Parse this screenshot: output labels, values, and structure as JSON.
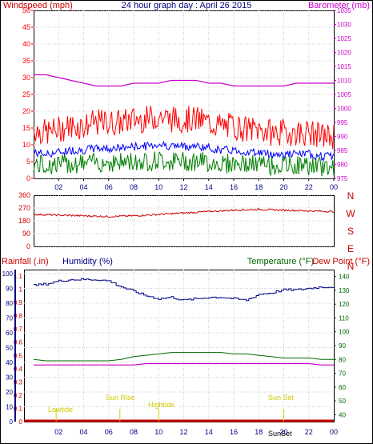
{
  "title": "24 hour graph day : April 26 2015",
  "colors": {
    "wind": "#ff0000",
    "gust_band": "#ff0000",
    "wind_avg": "#0000ff",
    "wind_low": "#008000",
    "baro": "#cc00cc",
    "dir": "#cc0000",
    "rain": "#cc0000",
    "humidity": "#000080",
    "temperature": "#006600",
    "dewpoint": "#cc00cc",
    "annotation": "#cccc00",
    "grid": "#cccccc"
  },
  "panel1": {
    "left_label": "Windspeed (mph)",
    "right_label": "Barometer (mb)",
    "left_ticks": [
      "0",
      "5",
      "10",
      "15",
      "20",
      "25",
      "30",
      "35",
      "40",
      "45",
      "50"
    ],
    "right_ticks": [
      "975",
      "980",
      "985",
      "990",
      "995",
      "1000",
      "1005",
      "1010",
      "1015",
      "1020",
      "1025",
      "1030",
      "1035"
    ]
  },
  "panel2": {
    "left_ticks": [
      "0",
      "90",
      "180",
      "270",
      "360"
    ],
    "compass": [
      "N",
      "W",
      "S",
      "E",
      "N"
    ]
  },
  "panel3": {
    "rain_label": "Rainfall (.in)",
    "humidity_label": "Humidity (%)",
    "temp_label": "Temperature (°F)",
    "dew_label": "Dew Point (°F)",
    "rain_ticks": [
      "0",
      "0.1",
      "0.2",
      "0.3",
      "0.4",
      "0.5",
      "0.6",
      "0.7",
      "0.8",
      "0.9",
      "1",
      "1.1"
    ],
    "humidity_ticks": [
      "0",
      "10",
      "20",
      "30",
      "40",
      "50",
      "60",
      "70",
      "80",
      "90",
      "100"
    ],
    "temp_ticks": [
      "40",
      "50",
      "60",
      "70",
      "80",
      "90",
      "100",
      "110",
      "120",
      "130",
      "140"
    ],
    "annotations": [
      "Lowtide",
      "Sun Rise",
      "Hightide",
      "Sun Set",
      "SunSet"
    ]
  },
  "x_ticks": [
    "02",
    "04",
    "06",
    "08",
    "10",
    "12",
    "14",
    "16",
    "18",
    "20",
    "22",
    "00"
  ],
  "chart_data": [
    {
      "type": "line",
      "title": "24 hour graph day : April 26 2015",
      "xlabel": "",
      "ylabel": "Windspeed (mph)",
      "ylim": [
        0,
        50
      ],
      "y2label": "Barometer (mb)",
      "y2lim": [
        975,
        1035
      ],
      "x": [
        0,
        1,
        2,
        3,
        4,
        5,
        6,
        7,
        8,
        9,
        10,
        11,
        12,
        13,
        14,
        15,
        16,
        17,
        18,
        19,
        20,
        21,
        22,
        23,
        24
      ],
      "series": [
        {
          "name": "Windspeed (mph)",
          "axis": "left",
          "values": [
            13,
            12,
            13,
            14,
            14,
            15,
            15,
            15,
            16,
            16,
            17,
            16,
            16,
            16,
            15,
            14,
            14,
            13,
            13,
            12,
            12,
            12,
            12,
            11,
            11
          ]
        },
        {
          "name": "Barometer (mb)",
          "axis": "right",
          "values": [
            1012,
            1012,
            1011,
            1010,
            1009,
            1008,
            1008,
            1008,
            1009,
            1009,
            1009,
            1010,
            1010,
            1010,
            1009,
            1009,
            1008,
            1008,
            1008,
            1008,
            1008,
            1009,
            1009,
            1009,
            1009
          ]
        }
      ]
    },
    {
      "type": "scatter",
      "ylim": [
        0,
        360
      ],
      "x": [
        0,
        2,
        4,
        6,
        8,
        10,
        12,
        14,
        16,
        18,
        20,
        22,
        24
      ],
      "series": [
        {
          "values": [
            225,
            220,
            215,
            210,
            215,
            225,
            235,
            245,
            255,
            260,
            255,
            250,
            245
          ]
        }
      ]
    },
    {
      "type": "line",
      "ylabel": "Humidity (%)",
      "ylim": [
        0,
        100
      ],
      "y2label": "Temperature (°F)",
      "y2lim": [
        35,
        145
      ],
      "x": [
        0,
        1,
        2,
        3,
        4,
        5,
        6,
        7,
        8,
        9,
        10,
        11,
        12,
        13,
        14,
        15,
        16,
        17,
        18,
        19,
        20,
        21,
        22,
        23,
        24
      ],
      "series": [
        {
          "name": "Humidity (%)",
          "axis": "left",
          "values": [
            92,
            93,
            95,
            96,
            96,
            96,
            95,
            91,
            88,
            85,
            83,
            84,
            82,
            83,
            84,
            84,
            83,
            82,
            86,
            87,
            89,
            89,
            90,
            91,
            91
          ]
        },
        {
          "name": "Temperature (°F)",
          "axis": "right",
          "values": [
            80,
            79,
            79,
            79,
            79,
            79,
            79,
            80,
            82,
            83,
            84,
            85,
            85,
            85,
            85,
            85,
            84,
            84,
            83,
            82,
            81,
            81,
            81,
            80,
            80
          ]
        },
        {
          "name": "Dew Point (°F)",
          "axis": "right",
          "values": [
            76,
            76,
            76,
            76,
            76,
            76,
            76,
            76,
            76,
            77,
            77,
            77,
            77,
            77,
            77,
            77,
            77,
            77,
            77,
            77,
            77,
            77,
            77,
            76,
            76
          ]
        },
        {
          "name": "Rainfall (.in)",
          "axis": "rain",
          "values": [
            0,
            0,
            0,
            0,
            0,
            0,
            0,
            0,
            0,
            0,
            0,
            0,
            0,
            0,
            0,
            0,
            0,
            0,
            0,
            0,
            0,
            0,
            0,
            0,
            0
          ]
        }
      ]
    }
  ]
}
